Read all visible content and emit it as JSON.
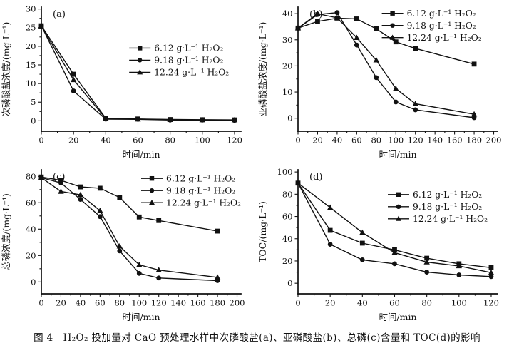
{
  "figure": {
    "caption": "图 4　H₂O₂ 投加量对 CaO 预处理水样中次磷酸盐(a)、亚磷酸盐(b)、总磷(c)含量和 TOC(d)的影响"
  },
  "colors": {
    "ink": "#111111",
    "background": "#ffffff"
  },
  "chart_data": [
    {
      "id": "a",
      "type": "line",
      "panel_label": "(a)",
      "title": "",
      "xlabel": "时间/min",
      "ylabel": "次磷酸盐浓度/(mg·L⁻¹)",
      "xlim": [
        0,
        124
      ],
      "ylim": [
        -2.8,
        30.5
      ],
      "xticks": [
        0,
        20,
        40,
        60,
        80,
        100,
        120
      ],
      "yticks": [
        0,
        5,
        10,
        15,
        20,
        25,
        30
      ],
      "grid": "off",
      "legend_position": "center-right",
      "legend_anchor": {
        "x": 0.44,
        "y": 0.33
      },
      "x": [
        0,
        20,
        40,
        60,
        80,
        100,
        120
      ],
      "series": [
        {
          "name": "6.12 g·L⁻¹ H₂O₂",
          "marker": "square",
          "values": [
            25.5,
            12.5,
            0.7,
            0.5,
            0.35,
            0.3,
            0.25
          ]
        },
        {
          "name": "9.18 g·L⁻¹ H₂O₂",
          "marker": "circle",
          "values": [
            25.5,
            8.0,
            0.45,
            0.4,
            0.2,
            0.2,
            0.1
          ]
        },
        {
          "name": "12.24 g·L⁻¹ H₂O₂",
          "marker": "triangle",
          "values": [
            25.3,
            11.0,
            0.6,
            0.45,
            0.3,
            0.25,
            0.2
          ]
        }
      ]
    },
    {
      "id": "b",
      "type": "line",
      "panel_label": "(b)",
      "title": "",
      "xlabel": "时间/min",
      "ylabel": "亚磷酸盐浓度/(mg·L⁻¹)",
      "xlim": [
        0,
        204
      ],
      "ylim": [
        -5,
        42.5
      ],
      "xticks": [
        0,
        20,
        40,
        60,
        80,
        100,
        120,
        140,
        160,
        180,
        200
      ],
      "yticks": [
        0,
        10,
        20,
        30,
        40
      ],
      "grid": "off",
      "legend_position": "top-right",
      "legend_anchor": {
        "x": 0.42,
        "y": 0.05
      },
      "x": [
        0,
        20,
        40,
        60,
        80,
        100,
        120,
        180
      ],
      "series": [
        {
          "name": "6.12 g·L⁻¹ H₂O₂",
          "marker": "square",
          "values": [
            34.5,
            37.0,
            38.3,
            38.0,
            34.2,
            29.2,
            26.7,
            20.7
          ]
        },
        {
          "name": "9.18 g·L⁻¹ H₂O₂",
          "marker": "circle",
          "values": [
            34.4,
            39.7,
            40.4,
            28.0,
            15.5,
            6.2,
            3.2,
            0.2
          ]
        },
        {
          "name": "12.24 g·L⁻¹ H₂O₂",
          "marker": "triangle",
          "values": [
            34.5,
            40.0,
            38.4,
            30.8,
            22.2,
            11.3,
            5.5,
            1.5
          ]
        }
      ]
    },
    {
      "id": "c",
      "type": "line",
      "panel_label": "(c)",
      "title": "",
      "xlabel": "时间/min",
      "ylabel": "总磷浓度/(mg·L⁻¹)",
      "xlim": [
        0,
        204
      ],
      "ylim": [
        -9,
        85
      ],
      "xticks": [
        0,
        20,
        40,
        60,
        80,
        100,
        120,
        140,
        160,
        180,
        200
      ],
      "yticks": [
        0,
        20,
        40,
        60,
        80
      ],
      "grid": "off",
      "legend_position": "top-right",
      "legend_anchor": {
        "x": 0.5,
        "y": 0.07
      },
      "x": [
        0,
        20,
        40,
        60,
        80,
        100,
        120,
        180
      ],
      "series": [
        {
          "name": "6.12 g·L⁻¹ H₂O₂",
          "marker": "square",
          "values": [
            79.5,
            77.0,
            72.0,
            71.0,
            64.0,
            49.2,
            46.5,
            38.5
          ]
        },
        {
          "name": "9.18 g·L⁻¹ H₂O₂",
          "marker": "circle",
          "values": [
            79.0,
            75.0,
            62.5,
            49.5,
            23.5,
            6.5,
            3.0,
            1.0
          ]
        },
        {
          "name": "12.24 g·L⁻¹ H₂O₂",
          "marker": "triangle",
          "values": [
            79.0,
            68.5,
            66.0,
            54.0,
            27.0,
            13.0,
            9.0,
            3.5
          ]
        }
      ]
    },
    {
      "id": "d",
      "type": "line",
      "panel_label": "(d)",
      "title": "",
      "xlabel": "时间/min",
      "ylabel": "TOC/(mg·L⁻¹)",
      "xlim": [
        0,
        124
      ],
      "ylim": [
        -9.5,
        102
      ],
      "xticks": [
        0,
        20,
        40,
        60,
        80,
        100,
        120
      ],
      "yticks": [
        0,
        20,
        40,
        60,
        80,
        100
      ],
      "grid": "off",
      "legend_position": "center-right",
      "legend_anchor": {
        "x": 0.45,
        "y": 0.2
      },
      "x": [
        0,
        20,
        40,
        60,
        80,
        100,
        120
      ],
      "series": [
        {
          "name": "6.12 g·L⁻¹ H₂O₂",
          "marker": "square",
          "values": [
            90.0,
            47.5,
            36.0,
            30.0,
            22.5,
            17.5,
            14.0
          ]
        },
        {
          "name": "9.18 g·L⁻¹ H₂O₂",
          "marker": "circle",
          "values": [
            90.0,
            35.0,
            21.0,
            17.5,
            10.0,
            7.5,
            6.0
          ]
        },
        {
          "name": "12.24 g·L⁻¹ H₂O₂",
          "marker": "triangle",
          "values": [
            90.0,
            68.0,
            45.5,
            27.5,
            19.0,
            15.5,
            9.5
          ]
        }
      ]
    }
  ]
}
